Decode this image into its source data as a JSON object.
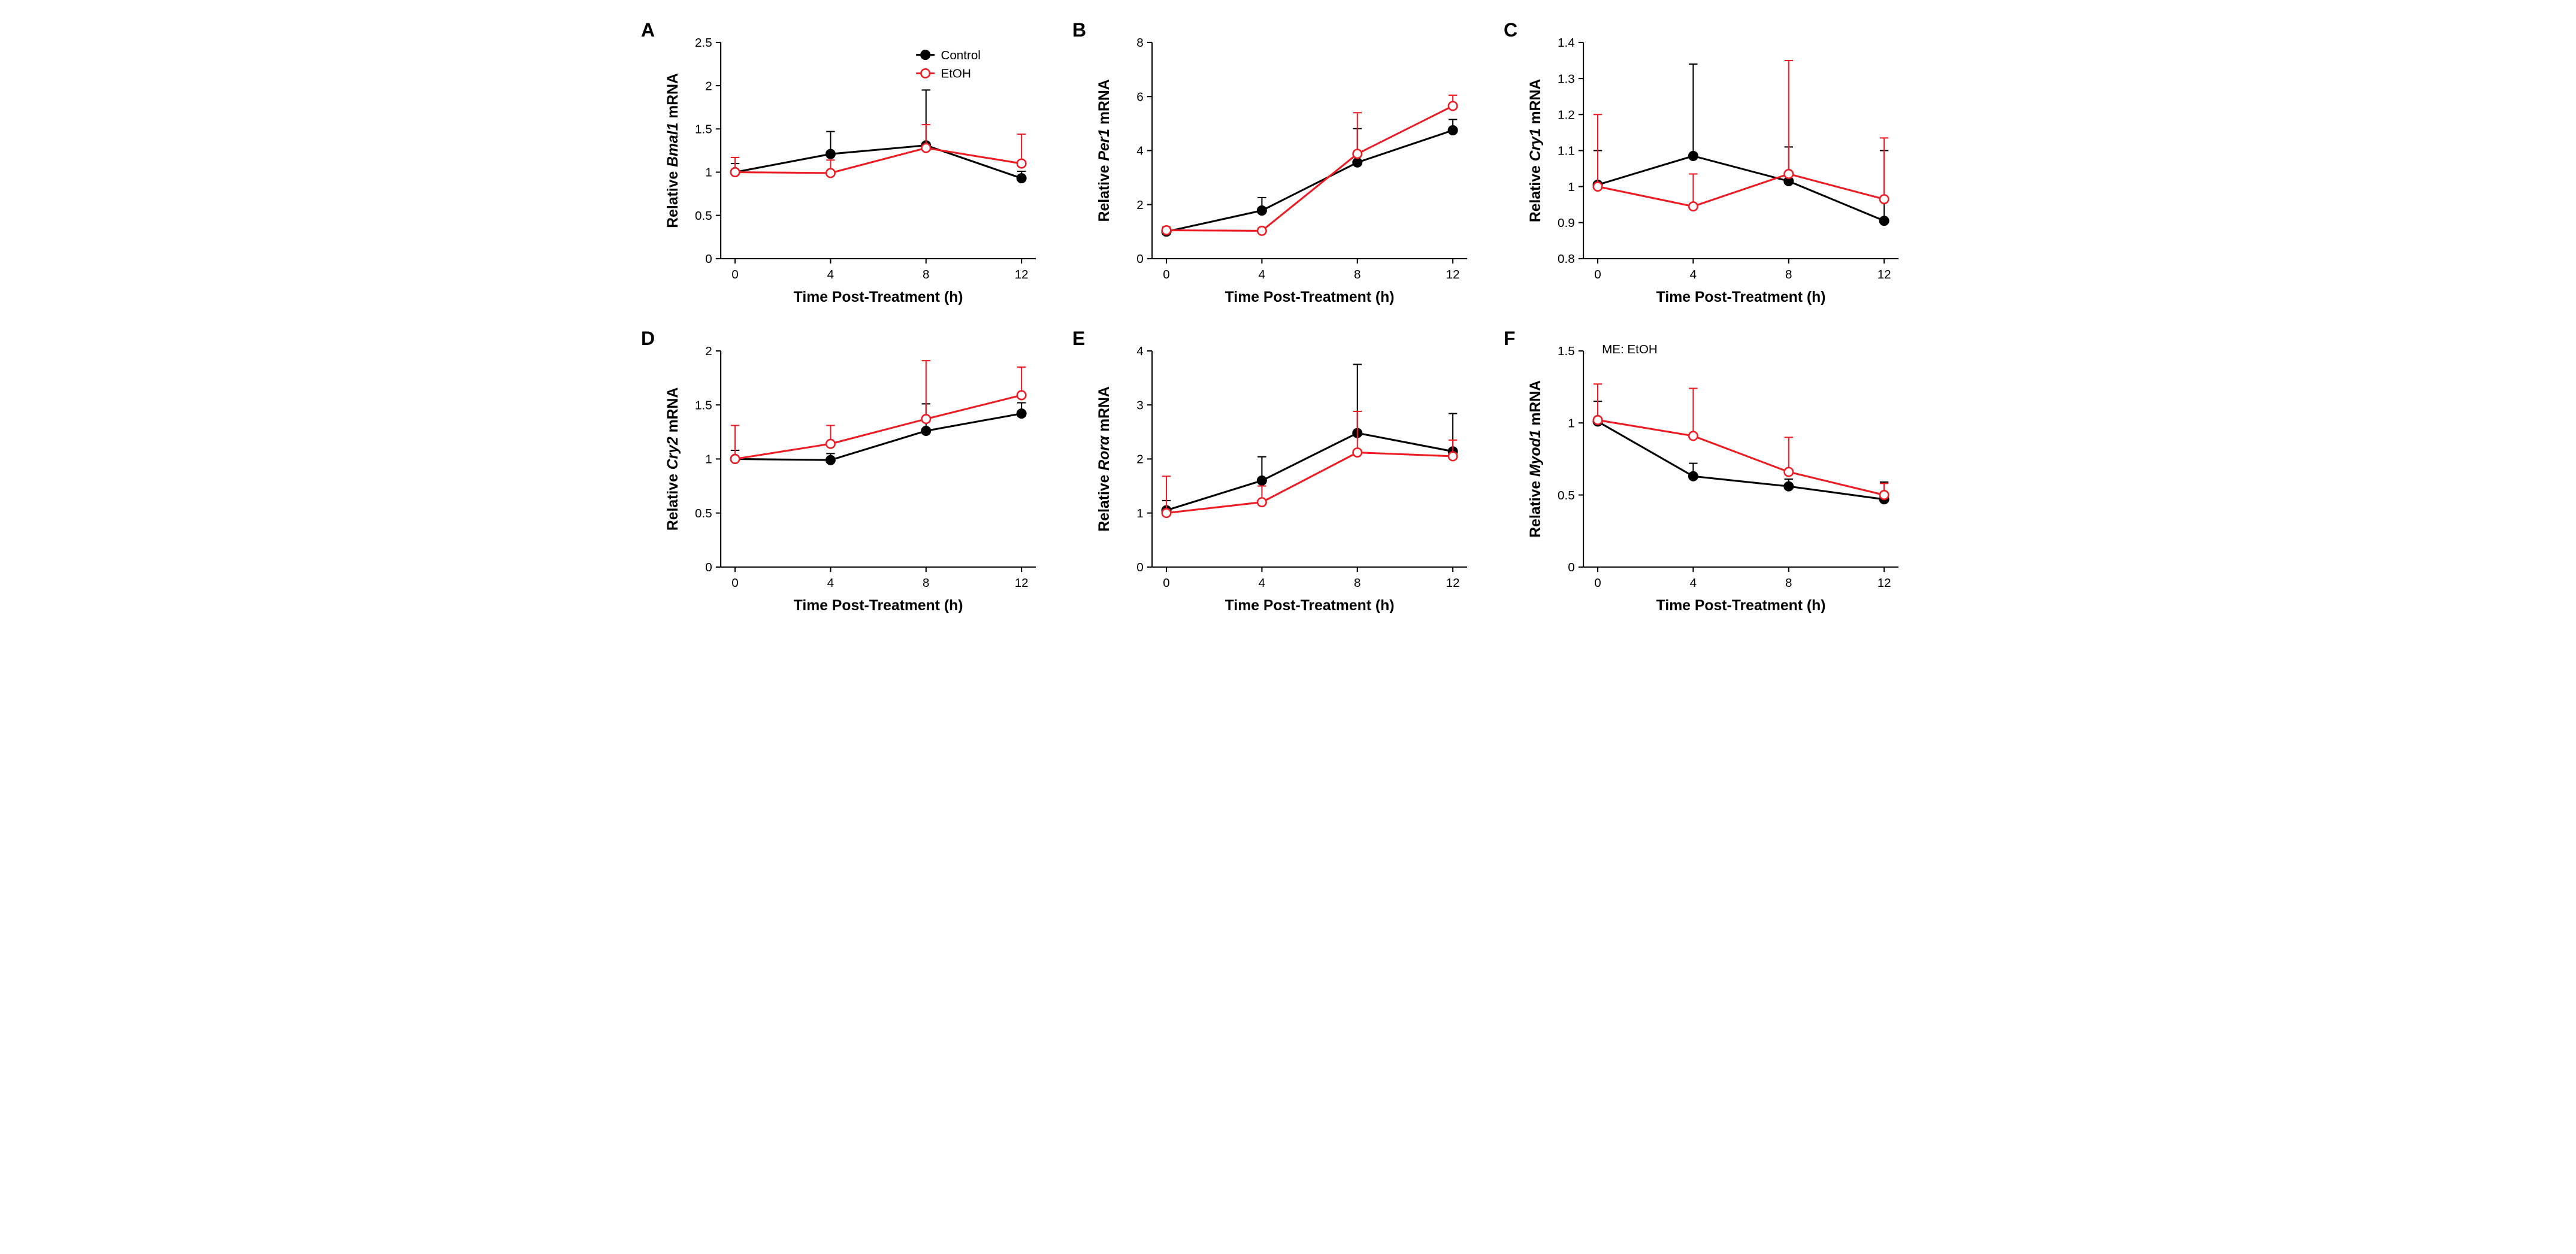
{
  "layout": {
    "rows": 2,
    "cols": 3
  },
  "colors": {
    "control": "#000000",
    "etoh": "#ec1c24",
    "background": "#ffffff",
    "axis": "#000000"
  },
  "marker": {
    "radius": 7,
    "style_control": "filled-circle",
    "style_etoh": "open-circle"
  },
  "line_width": 3,
  "x_axis": {
    "ticks": [
      0,
      4,
      8,
      12
    ],
    "title": "Time Post-Treatment (h)"
  },
  "legend": {
    "panel": "A",
    "items": [
      {
        "label": "Control",
        "series": "control"
      },
      {
        "label": "EtOH",
        "series": "etoh"
      }
    ]
  },
  "panels": [
    {
      "id": "A",
      "y_title": "Relative Bmal1 mRNA",
      "y_title_italic_word": "Bmal1",
      "ylim": [
        0.0,
        2.5
      ],
      "yticks": [
        0.0,
        0.5,
        1.0,
        1.5,
        2.0,
        2.5
      ],
      "control": {
        "x": [
          0,
          4,
          8,
          12
        ],
        "y": [
          1.0,
          1.21,
          1.31,
          0.93
        ],
        "err": [
          0.1,
          0.26,
          0.64,
          0.08
        ]
      },
      "etoh": {
        "x": [
          0,
          4,
          8,
          12
        ],
        "y": [
          1.0,
          0.99,
          1.28,
          1.1
        ],
        "err": [
          0.17,
          0.15,
          0.27,
          0.34
        ]
      }
    },
    {
      "id": "B",
      "y_title": "Relative Per1 mRNA",
      "y_title_italic_word": "Per1",
      "ylim": [
        0,
        8
      ],
      "yticks": [
        0,
        2,
        4,
        6,
        8
      ],
      "control": {
        "x": [
          0,
          4,
          8,
          12
        ],
        "y": [
          1.0,
          1.78,
          3.56,
          4.75
        ],
        "err": [
          0.12,
          0.48,
          1.25,
          0.4
        ]
      },
      "etoh": {
        "x": [
          0,
          4,
          8,
          12
        ],
        "y": [
          1.05,
          1.03,
          3.88,
          5.65
        ],
        "err": [
          0.12,
          0.1,
          1.52,
          0.4
        ]
      }
    },
    {
      "id": "C",
      "y_title": "Relative Cry1 mRNA",
      "y_title_italic_word": "Cry1",
      "ylim": [
        0.8,
        1.4
      ],
      "yticks": [
        0.8,
        0.9,
        1.0,
        1.1,
        1.2,
        1.3,
        1.4
      ],
      "control": {
        "x": [
          0,
          4,
          8,
          12
        ],
        "y": [
          1.005,
          1.085,
          1.015,
          0.905
        ],
        "err": [
          0.095,
          0.255,
          0.095,
          0.195
        ]
      },
      "etoh": {
        "x": [
          0,
          4,
          8,
          12
        ],
        "y": [
          1.0,
          0.945,
          1.035,
          0.965
        ],
        "err": [
          0.2,
          0.09,
          0.315,
          0.17
        ]
      }
    },
    {
      "id": "D",
      "y_title": "Relative Cry2 mRNA",
      "y_title_italic_word": "Cry2",
      "ylim": [
        0.0,
        2.0
      ],
      "yticks": [
        0.0,
        0.5,
        1.0,
        1.5,
        2.0
      ],
      "control": {
        "x": [
          0,
          4,
          8,
          12
        ],
        "y": [
          1.0,
          0.99,
          1.26,
          1.42
        ],
        "err": [
          0.08,
          0.06,
          0.25,
          0.1
        ]
      },
      "etoh": {
        "x": [
          0,
          4,
          8,
          12
        ],
        "y": [
          1.0,
          1.14,
          1.37,
          1.59
        ],
        "err": [
          0.31,
          0.17,
          0.54,
          0.26
        ]
      }
    },
    {
      "id": "E",
      "y_title": "Relative Rorα mRNA",
      "y_title_italic_word": "Rorα",
      "ylim": [
        0,
        4
      ],
      "yticks": [
        0,
        1,
        2,
        3,
        4
      ],
      "control": {
        "x": [
          0,
          4,
          8,
          12
        ],
        "y": [
          1.05,
          1.6,
          2.48,
          2.14
        ],
        "err": [
          0.18,
          0.44,
          1.27,
          0.7
        ]
      },
      "etoh": {
        "x": [
          0,
          4,
          8,
          12
        ],
        "y": [
          1.0,
          1.2,
          2.12,
          2.05
        ],
        "err": [
          0.68,
          0.3,
          0.76,
          0.3
        ]
      }
    },
    {
      "id": "F",
      "y_title": "Relative Myod1 mRNA",
      "y_title_italic_word": "Myod1",
      "ylim": [
        0.0,
        1.5
      ],
      "yticks": [
        0.0,
        0.5,
        1.0,
        1.5
      ],
      "annotation": "ME: EtOH",
      "control": {
        "x": [
          0,
          4,
          8,
          12
        ],
        "y": [
          1.01,
          0.63,
          0.56,
          0.47
        ],
        "err": [
          0.14,
          0.09,
          0.05,
          0.12
        ]
      },
      "etoh": {
        "x": [
          0,
          4,
          8,
          12
        ],
        "y": [
          1.02,
          0.91,
          0.66,
          0.5
        ],
        "err": [
          0.25,
          0.33,
          0.24,
          0.08
        ]
      }
    }
  ]
}
